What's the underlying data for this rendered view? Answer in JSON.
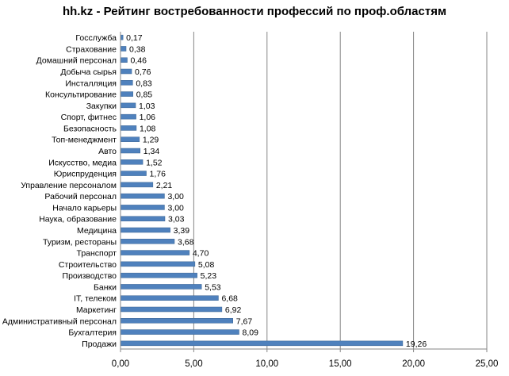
{
  "chart_data": {
    "type": "bar",
    "orientation": "horizontal",
    "title": "hh.kz - Рейтинг востребованности профессий по проф.областям",
    "categories": [
      "Госслужба",
      "Страхование",
      "Домашний персонал",
      "Добыча сырья",
      "Инсталляция",
      "Консультирование",
      "Закупки",
      "Спорт, фитнес",
      "Безопасность",
      "Топ-менеджмент",
      "Авто",
      "Искусство, медиа",
      "Юриспруденция",
      "Управление персоналом",
      "Рабочий персонал",
      "Начало карьеры",
      "Наука, образование",
      "Медицина",
      "Туризм, рестораны",
      "Транспорт",
      "Строительство",
      "Производство",
      "Банки",
      "IT, телеком",
      "Маркетинг",
      "Административный персонал",
      "Бухгалтерия",
      "Продажи"
    ],
    "values": [
      0.17,
      0.38,
      0.46,
      0.76,
      0.83,
      0.85,
      1.03,
      1.06,
      1.08,
      1.29,
      1.34,
      1.52,
      1.76,
      2.21,
      3.0,
      3.0,
      3.03,
      3.39,
      3.68,
      4.7,
      5.08,
      5.23,
      5.53,
      6.68,
      6.92,
      7.67,
      8.09,
      19.26
    ],
    "value_labels": [
      "0,17",
      "0,38",
      "0,46",
      "0,76",
      "0,83",
      "0,85",
      "1,03",
      "1,06",
      "1,08",
      "1,29",
      "1,34",
      "1,52",
      "1,76",
      "2,21",
      "3,00",
      "3,00",
      "3,03",
      "3,39",
      "3,68",
      "4,70",
      "5,08",
      "5,23",
      "5,53",
      "6,68",
      "6,92",
      "7,67",
      "8,09",
      "19,26"
    ],
    "xlim": [
      0,
      25
    ],
    "x_ticks": [
      0,
      5,
      10,
      15,
      20,
      25
    ],
    "x_tick_labels": [
      "0,00",
      "5,00",
      "10,00",
      "15,00",
      "20,00",
      "25,00"
    ],
    "grid": "vertical",
    "legend": "none",
    "colors": {
      "bar": "#4f81bd",
      "bar_edge": "#3a6493",
      "grid": "#868686",
      "axis": "#868686"
    }
  }
}
